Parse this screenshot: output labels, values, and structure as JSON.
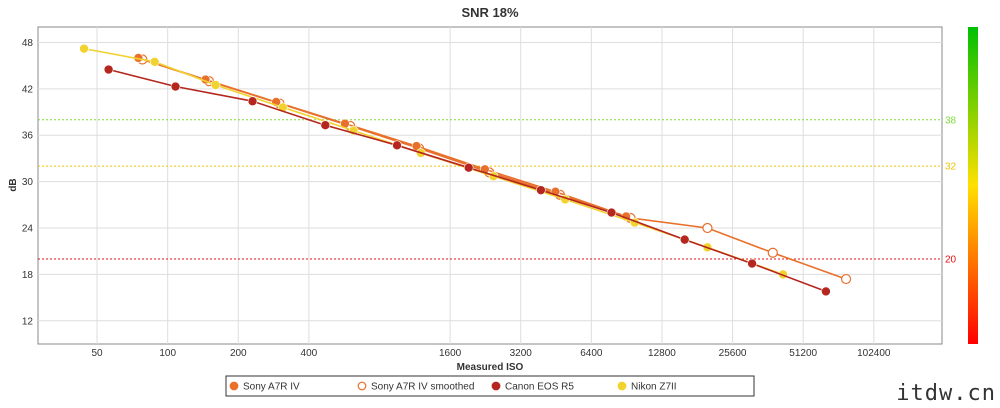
{
  "chart_data": {
    "type": "line",
    "title": "SNR 18%",
    "xlabel": "Measured ISO",
    "ylabel": "dB",
    "x_scale": "log2",
    "xlim": [
      28,
      200000
    ],
    "ylim": [
      9,
      50
    ],
    "x_ticks": [
      50,
      100,
      200,
      400,
      1600,
      3200,
      6400,
      12800,
      25600,
      51200,
      102400
    ],
    "y_ticks": [
      12,
      18,
      24,
      30,
      36,
      42,
      48
    ],
    "grid": true,
    "reference_lines": [
      {
        "value": 38,
        "label": "38",
        "color": "#7fdc3c"
      },
      {
        "value": 32,
        "label": "32",
        "color": "#f2c200"
      },
      {
        "value": 20,
        "label": "20",
        "color": "#e81010"
      }
    ],
    "colorbar": {
      "colors": [
        "#00c000",
        "#ffe000",
        "#ff0000"
      ]
    },
    "legend_position": "bottom",
    "series": [
      {
        "name": "Sony A7R IV",
        "color": "#e8702a",
        "marker": "filled",
        "x": [
          75,
          145,
          290,
          570,
          1150,
          2250,
          4500,
          9000
        ],
        "y": [
          46.0,
          43.2,
          40.3,
          37.5,
          34.6,
          31.6,
          28.7,
          25.5
        ]
      },
      {
        "name": "Sony A7R IV smoothed",
        "color": "#e8702a",
        "marker": "hollow",
        "x": [
          78,
          150,
          300,
          600,
          1180,
          2350,
          4700,
          9400,
          20000,
          38000,
          78000
        ],
        "y": [
          45.8,
          43.0,
          40.1,
          37.2,
          34.3,
          31.2,
          28.3,
          25.3,
          24.0,
          20.8,
          17.4
        ]
      },
      {
        "name": "Canon EOS R5",
        "color": "#b5261e",
        "marker": "filled",
        "x": [
          56,
          108,
          230,
          470,
          950,
          1920,
          3900,
          7800,
          16000,
          31000,
          64000
        ],
        "y": [
          44.5,
          42.3,
          40.4,
          37.3,
          34.7,
          31.8,
          28.9,
          26.0,
          22.5,
          19.4,
          15.8
        ]
      },
      {
        "name": "Nikon Z7II",
        "color": "#f2d22e",
        "marker": "filled",
        "x": [
          44,
          88,
          160,
          310,
          620,
          1200,
          2450,
          4950,
          9800,
          20000,
          42000
        ],
        "y": [
          47.2,
          45.5,
          42.5,
          39.6,
          36.6,
          33.7,
          30.7,
          27.7,
          24.7,
          21.5,
          18.0
        ]
      }
    ]
  },
  "watermark": "itdw.cn"
}
